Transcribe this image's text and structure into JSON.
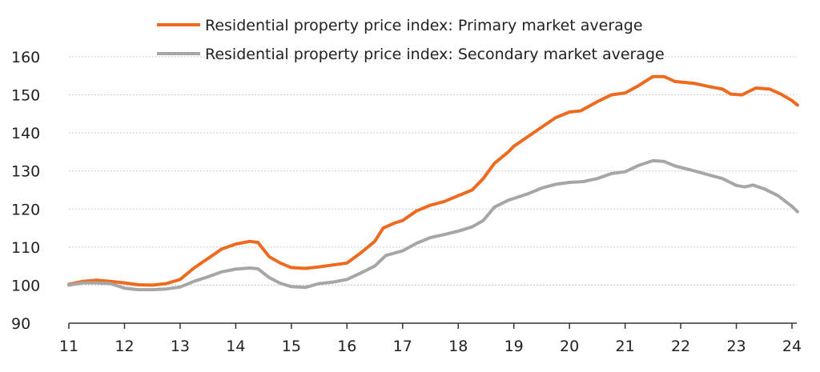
{
  "chart_data": {
    "type": "line",
    "title": "",
    "xlabel": "",
    "ylabel": "",
    "xlim": [
      11,
      24.1
    ],
    "ylim": [
      90,
      160
    ],
    "x_ticks": [
      "11",
      "12",
      "13",
      "14",
      "15",
      "16",
      "17",
      "18",
      "19",
      "20",
      "21",
      "22",
      "23",
      "24"
    ],
    "y_ticks": [
      "90",
      "100",
      "110",
      "120",
      "130",
      "140",
      "150",
      "160"
    ],
    "grid": "horizontal dotted",
    "legend_position": "top",
    "series": [
      {
        "name": "Residential property price index: Primary market average",
        "color": "#ee6a1f",
        "x": [
          11.0,
          11.25,
          11.5,
          11.75,
          12.0,
          12.25,
          12.5,
          12.75,
          13.0,
          13.25,
          13.5,
          13.75,
          14.0,
          14.25,
          14.4,
          14.6,
          14.8,
          15.0,
          15.25,
          15.5,
          15.75,
          16.0,
          16.25,
          16.5,
          16.65,
          16.85,
          17.0,
          17.25,
          17.5,
          17.75,
          18.0,
          18.25,
          18.45,
          18.65,
          18.9,
          19.0,
          19.25,
          19.5,
          19.75,
          20.0,
          20.2,
          20.5,
          20.75,
          21.0,
          21.25,
          21.5,
          21.7,
          21.9,
          22.25,
          22.5,
          22.75,
          22.9,
          23.1,
          23.35,
          23.6,
          23.8,
          24.0,
          24.1
        ],
        "values": [
          100.2,
          101,
          101.3,
          101,
          100.6,
          100.1,
          100,
          100.4,
          101.5,
          104.5,
          107,
          109.5,
          110.8,
          111.5,
          111.2,
          107.5,
          105.8,
          104.6,
          104.4,
          104.8,
          105.3,
          105.8,
          108.5,
          111.5,
          115,
          116.3,
          117,
          119.5,
          121,
          122,
          123.5,
          125,
          128,
          132,
          135,
          136.5,
          139,
          141.5,
          144,
          145.5,
          145.8,
          148.2,
          150,
          150.5,
          152.5,
          154.8,
          154.8,
          153.5,
          153,
          152.2,
          151.5,
          150.2,
          150,
          151.8,
          151.5,
          150.2,
          148.5,
          147.3
        ]
      },
      {
        "name": "Residential property price index: Secondary market average",
        "color": "#a6a6a6",
        "x": [
          11.0,
          11.25,
          11.5,
          11.75,
          12.0,
          12.25,
          12.5,
          12.75,
          13.0,
          13.25,
          13.5,
          13.75,
          14.0,
          14.25,
          14.4,
          14.6,
          14.8,
          15.0,
          15.25,
          15.5,
          15.75,
          16.0,
          16.25,
          16.5,
          16.7,
          17.0,
          17.25,
          17.5,
          17.75,
          18.0,
          18.25,
          18.45,
          18.65,
          18.9,
          19.0,
          19.25,
          19.5,
          19.75,
          20.0,
          20.25,
          20.5,
          20.75,
          21.0,
          21.25,
          21.5,
          21.7,
          21.9,
          22.25,
          22.5,
          22.75,
          23.0,
          23.15,
          23.3,
          23.5,
          23.75,
          24.0,
          24.1
        ],
        "values": [
          100,
          100.6,
          100.6,
          100.4,
          99.2,
          98.8,
          98.8,
          99,
          99.5,
          101,
          102.2,
          103.5,
          104.2,
          104.5,
          104.3,
          102,
          100.5,
          99.6,
          99.4,
          100.4,
          100.8,
          101.5,
          103.2,
          105,
          107.8,
          109,
          111,
          112.5,
          113.3,
          114.2,
          115.3,
          117,
          120.5,
          122.3,
          122.8,
          124,
          125.5,
          126.5,
          127,
          127.2,
          128,
          129.3,
          129.8,
          131.5,
          132.7,
          132.5,
          131.3,
          130,
          129,
          128,
          126.2,
          125.8,
          126.3,
          125.3,
          123.5,
          120.7,
          119.3
        ]
      }
    ]
  }
}
